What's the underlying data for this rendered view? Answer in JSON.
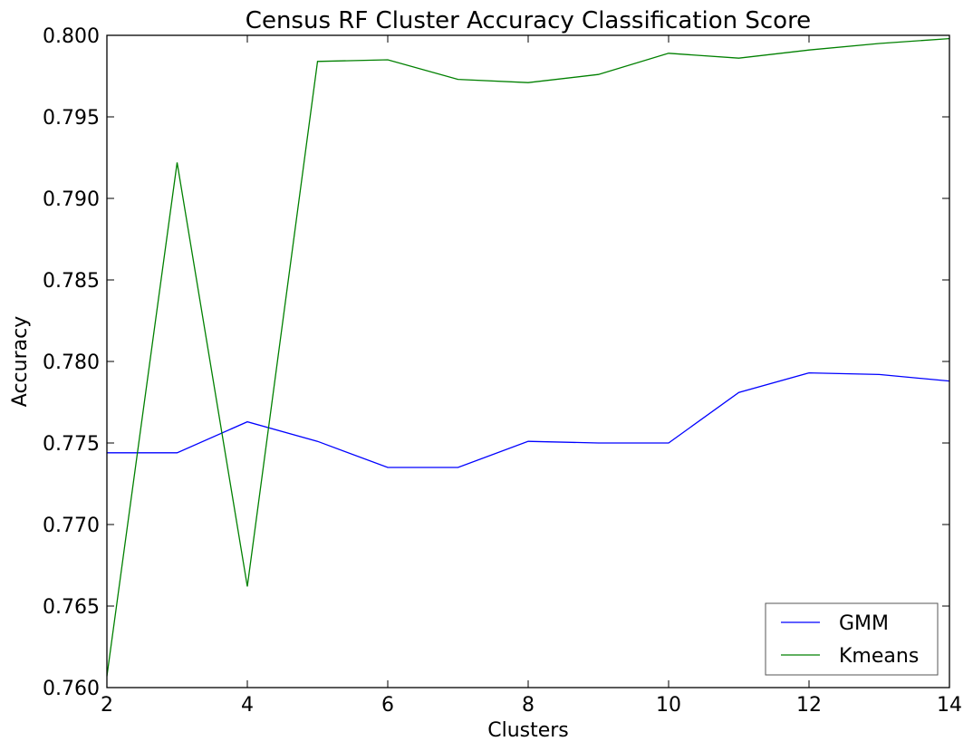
{
  "chart_data": {
    "type": "line",
    "title": "Census RF Cluster Accuracy Classification Score",
    "xlabel": "Clusters",
    "ylabel": "Accuracy",
    "xlim": [
      2,
      14
    ],
    "ylim": [
      0.76,
      0.8
    ],
    "xticks": [
      2,
      4,
      6,
      8,
      10,
      12,
      14
    ],
    "xtick_labels": [
      "2",
      "4",
      "6",
      "8",
      "10",
      "12",
      "14"
    ],
    "yticks": [
      0.76,
      0.765,
      0.77,
      0.775,
      0.78,
      0.785,
      0.79,
      0.795,
      0.8
    ],
    "ytick_labels": [
      "0.760",
      "0.765",
      "0.770",
      "0.775",
      "0.780",
      "0.785",
      "0.790",
      "0.795",
      "0.800"
    ],
    "x": [
      2,
      3,
      4,
      5,
      6,
      7,
      8,
      9,
      10,
      11,
      12,
      13,
      14
    ],
    "series": [
      {
        "name": "GMM",
        "color": "#0000ff",
        "values": [
          0.7744,
          0.7744,
          0.7763,
          0.7751,
          0.7735,
          0.7735,
          0.7751,
          0.775,
          0.775,
          0.7781,
          0.7793,
          0.7792,
          0.7788
        ]
      },
      {
        "name": "Kmeans",
        "color": "#008000",
        "values": [
          0.7607,
          0.7922,
          0.7662,
          0.7984,
          0.7985,
          0.7973,
          0.7971,
          0.7976,
          0.7989,
          0.7986,
          0.7991,
          0.7995,
          0.7998
        ]
      }
    ],
    "legend_position": "bottom-right",
    "grid": false
  }
}
